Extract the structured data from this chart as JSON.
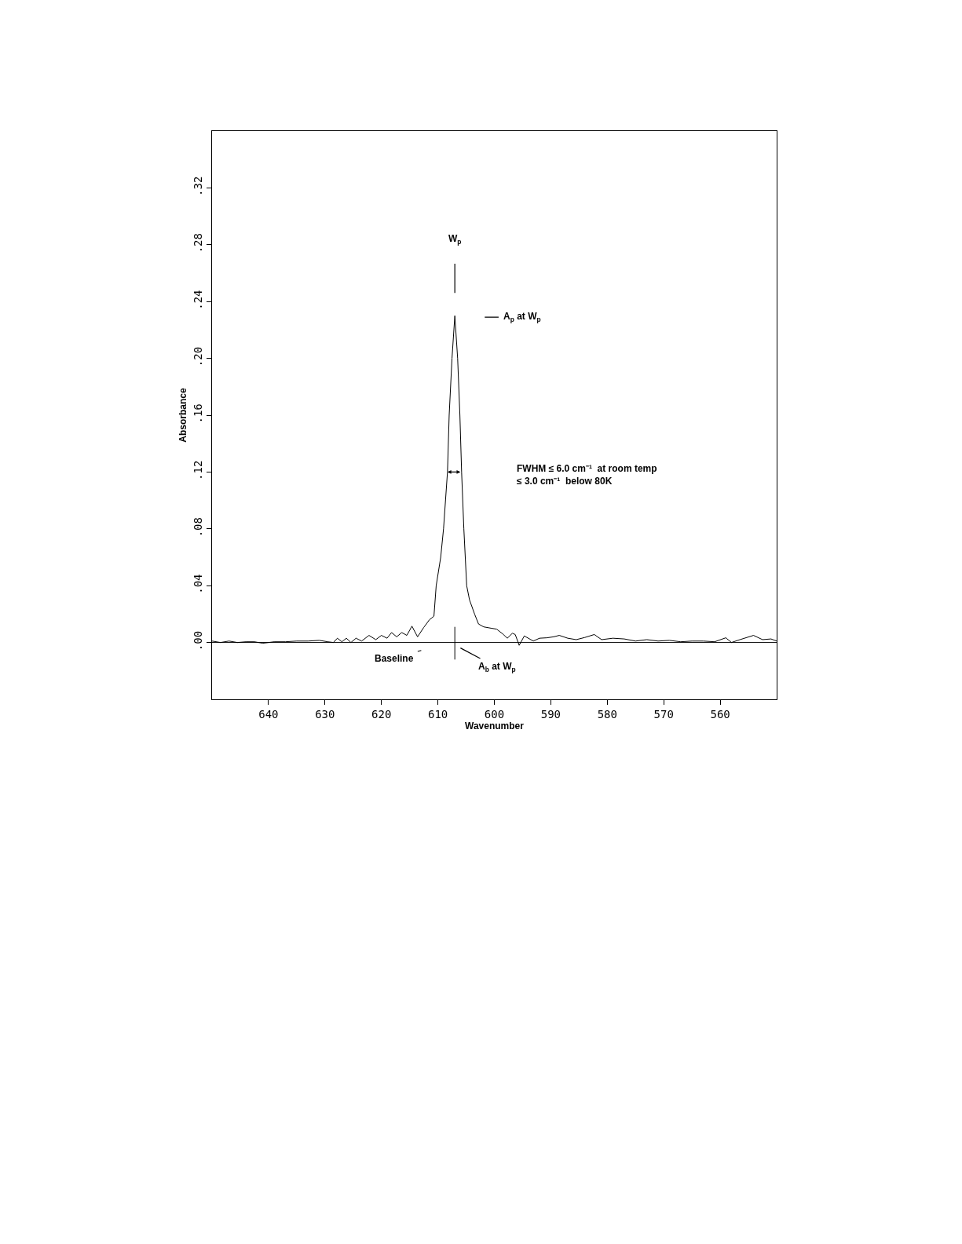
{
  "chart_data": {
    "type": "line",
    "xlabel": "Wavenumber",
    "ylabel": "Absorbance",
    "x": [
      650,
      648.5,
      647,
      645.5,
      644,
      642.5,
      641,
      639,
      637,
      635,
      633,
      631,
      629.5,
      628.5,
      627.8,
      627,
      626.2,
      625.4,
      624.5,
      623.5,
      622.2,
      621,
      620,
      619,
      618.2,
      617.3,
      616.4,
      615.5,
      614.6,
      613.6,
      612.5,
      611.5,
      610.7,
      610.3,
      609.5,
      609.0,
      608.3,
      608.0,
      607.5,
      607.0,
      606.5,
      606.1,
      605.8,
      605.4,
      604.9,
      604.4,
      603.5,
      602.8,
      601.9,
      600.5,
      599.6,
      598.5,
      597.7,
      596.8,
      596.3,
      595.6,
      594.7,
      593.1,
      592,
      590.7,
      589.5,
      588.5,
      587,
      585.5,
      584,
      582.3,
      581,
      579,
      577,
      575,
      573,
      571,
      569,
      567,
      565,
      563,
      561,
      559,
      558,
      556.5,
      554.1,
      552.5,
      551,
      550
    ],
    "series": [
      {
        "color": "#000000",
        "values": [
          0.001,
          0.0,
          0.001,
          0.0,
          0.0005,
          0.0005,
          -0.0005,
          0.0005,
          0.0005,
          0.001,
          0.001,
          0.0015,
          0.0005,
          0.0,
          0.003,
          0.0005,
          0.003,
          0.0,
          0.003,
          0.001,
          0.005,
          0.002,
          0.005,
          0.003,
          0.007,
          0.004,
          0.007,
          0.005,
          0.0115,
          0.004,
          0.0106,
          0.016,
          0.0185,
          0.04,
          0.06,
          0.08,
          0.12,
          0.16,
          0.2,
          0.23,
          0.2,
          0.16,
          0.12,
          0.08,
          0.04,
          0.03,
          0.02,
          0.013,
          0.011,
          0.01,
          0.0094,
          0.006,
          0.003,
          0.0065,
          0.0056,
          -0.002,
          0.0046,
          0.001,
          0.003,
          0.0033,
          0.004,
          0.005,
          0.003,
          0.002,
          0.0035,
          0.0056,
          0.002,
          0.003,
          0.0025,
          0.001,
          0.002,
          0.001,
          0.0015,
          0.0005,
          0.001,
          0.001,
          0.0005,
          0.0033,
          0.0,
          0.002,
          0.005,
          0.002,
          0.0025,
          0.001
        ]
      },
      {
        "color": "#000000",
        "x": [
          607,
          607
        ],
        "values": [
          -0.012,
          0.011
        ]
      }
    ],
    "xlim": [
      650,
      550
    ],
    "xticks": [
      640,
      630,
      620,
      610,
      600,
      590,
      580,
      570,
      560
    ],
    "ylim": [
      -0.04,
      0.36
    ],
    "yticks": [
      {
        "value": 0,
        "label": ".00"
      },
      {
        "value": 0.04,
        "label": ".04"
      },
      {
        "value": 0.08,
        "label": ".08"
      },
      {
        "value": 0.12,
        "label": ".12"
      },
      {
        "value": 0.16,
        "label": ".16"
      },
      {
        "value": 0.2,
        "label": ".20"
      },
      {
        "value": 0.24,
        "label": ".24"
      },
      {
        "value": 0.28,
        "label": ".28"
      },
      {
        "value": 0.32,
        "label": ".32"
      }
    ],
    "ref_lines": [
      {
        "axis": "y",
        "value": 0,
        "color": "#000000"
      }
    ],
    "annotations": [
      "W$_{p}$",
      "A$_{p}$ at W$_{p}$",
      "FWHM ≤ 6.0 cm⁻¹  at room temp\n≤ 3.0 cm⁻¹  below 80K",
      "Baseline",
      "A$_{b}$ at W$_{p}$"
    ],
    "grid": false,
    "marker": "none",
    "line_style": "solid"
  }
}
